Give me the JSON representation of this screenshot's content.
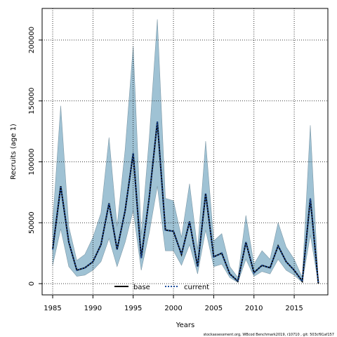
{
  "chart_data": {
    "type": "line",
    "x_label": "Years",
    "y_label": "Recruits (age 1)",
    "footnote": "stockassessment.org, WBcod Benchmark2019, r10710 , git: 503cf91af157",
    "x": [
      1985,
      1986,
      1987,
      1988,
      1989,
      1990,
      1991,
      1992,
      1993,
      1994,
      1995,
      1996,
      1997,
      1998,
      1999,
      2000,
      2001,
      2002,
      2003,
      2004,
      2005,
      2006,
      2007,
      2008,
      2009,
      2010,
      2011,
      2012,
      2013,
      2014,
      2015,
      2016,
      2017,
      2018
    ],
    "series": [
      {
        "name": "base",
        "color": "#000000",
        "values": [
          28000,
          80000,
          34000,
          11000,
          13000,
          18000,
          32000,
          66000,
          28000,
          60000,
          107000,
          21000,
          71000,
          133000,
          44000,
          43000,
          24000,
          51000,
          14000,
          74000,
          22000,
          25000,
          8000,
          2000,
          34000,
          9000,
          15000,
          13000,
          31000,
          18000,
          11000,
          2000,
          70000,
          0
        ]
      },
      {
        "name": "current",
        "color": "#1f4e9c",
        "values": [
          28000,
          80000,
          34000,
          11000,
          13000,
          18000,
          32000,
          66000,
          28000,
          60000,
          107000,
          21000,
          71000,
          133000,
          44000,
          43000,
          24000,
          51000,
          14000,
          74000,
          22000,
          25000,
          8000,
          2000,
          34000,
          9000,
          15000,
          13000,
          31000,
          18000,
          11000,
          2000,
          70000,
          0
        ]
      }
    ],
    "band": {
      "color": "#9fc2d4",
      "upper": [
        50000,
        146000,
        47000,
        19000,
        24000,
        38000,
        58000,
        120000,
        47000,
        110000,
        195000,
        40000,
        120000,
        217000,
        70000,
        68000,
        38000,
        82000,
        28000,
        117000,
        35000,
        41000,
        14000,
        5000,
        56000,
        16000,
        27000,
        20000,
        50000,
        30000,
        20000,
        5000,
        130000,
        0
      ],
      "lower": [
        15000,
        45000,
        14000,
        6000,
        7000,
        11000,
        18000,
        37000,
        14000,
        34000,
        60000,
        11000,
        42000,
        80000,
        27000,
        27000,
        15000,
        32000,
        8000,
        44000,
        14000,
        16000,
        5000,
        1000,
        20000,
        6000,
        10000,
        8000,
        20000,
        11000,
        7000,
        1000,
        40000,
        0
      ]
    },
    "xlim": [
      1983.69,
      2019.18
    ],
    "ylim": [
      -9220,
      225936
    ],
    "xticks": [
      1985,
      1990,
      1995,
      2000,
      2005,
      2010,
      2015
    ],
    "yticks": [
      0,
      50000,
      100000,
      150000,
      200000
    ],
    "grid": true
  }
}
